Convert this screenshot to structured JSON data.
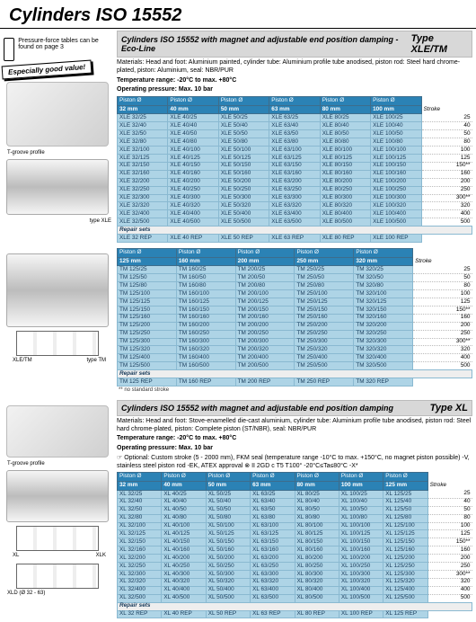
{
  "page_title": "Cylinders ISO 15552",
  "pressure_note": "Pressure-force tables can be found on page 3",
  "callout": "Especially good value!",
  "caption_tgroove": "T-groove profile",
  "caption_typeXLE": "type XLE",
  "caption_XLETM": "XLE/TM",
  "caption_typeTM": "type TM",
  "caption_XL": "XL",
  "caption_XLK": "XLK",
  "caption_XLD": "XLD (Ø 32 - 63)",
  "stroke_label": "Stroke",
  "repair_label": "Repair sets",
  "footnote_nostd": "** no standard stroke",
  "sec1": {
    "title": "Cylinders ISO 15552 with magnet and adjustable end position damping - Eco-Line",
    "type": "Type XLE/TM",
    "mat": "Materials: Head and foot: Aluminium painted, cylinder tube: Aluminium profile tube anodised, piston rod: Steel hard chrome-plated, piston: Aluminium, seal: NBR/PUR",
    "temp": "Temperature range: -20°C to max. +80°C",
    "press": "Operating pressure: Max. 10 bar"
  },
  "t1": {
    "dias": [
      "32 mm",
      "40 mm",
      "50 mm",
      "63 mm",
      "80 mm",
      "100 mm"
    ],
    "strokes": [
      25,
      40,
      50,
      80,
      100,
      125,
      "150**",
      160,
      200,
      250,
      "300**",
      320,
      400,
      500
    ],
    "pre": "XLE",
    "sizes": [
      "32",
      "40",
      "50",
      "63",
      "80",
      "100"
    ],
    "stvals": [
      "25",
      "40",
      "50",
      "80",
      "100",
      "125",
      "150",
      "160",
      "200",
      "250",
      "300",
      "320",
      "400",
      "500"
    ],
    "rep": [
      "XLE 32 REP",
      "XLE 40 REP",
      "XLE 50 REP",
      "XLE 63 REP",
      "XLE 80 REP",
      "XLE 100 REP"
    ]
  },
  "t2": {
    "dias": [
      "125 mm",
      "160 mm",
      "200 mm",
      "250 mm",
      "320 mm"
    ],
    "strokes": [
      25,
      50,
      80,
      100,
      125,
      "150**",
      160,
      200,
      250,
      "300**",
      320,
      400,
      500
    ],
    "pre": "TM",
    "sizes": [
      "125",
      "160",
      "200",
      "250",
      "320"
    ],
    "stvals": [
      "25",
      "50",
      "80",
      "100",
      "125",
      "150",
      "160",
      "200",
      "250",
      "300",
      "320",
      "400",
      "500"
    ],
    "rep": [
      "TM 125 REP",
      "TM 160 REP",
      "TM 200 REP",
      "TM 250 REP",
      "TM 320 REP"
    ]
  },
  "sec2": {
    "title": "Cylinders ISO 15552 with magnet and adjustable end position damping",
    "type": "Type XL",
    "mat": "Materials: Head and foot: Stove-enamelled die-cast aluminium, cylinder tube: Aluminium profile tube anodised, piston rod: Steel hard chrome-plated, piston: Complete piston (ST/NBR), seal: NBR/PUR",
    "temp": "Temperature range: -20°C to max. +80°C",
    "press": "Operating pressure: Max. 10 bar",
    "opt": "☞ Optional: Custom stroke (5 - 2000 mm), FKM seal (temperature range -10°C to max. +150°C, no magnet piston possible) -V, stainless steel piston rod -EK, ATEX approval ⊗ II 2GD c T5 T100° -20°C≤Ta≤80°C -X*"
  },
  "t3": {
    "dias": [
      "32 mm",
      "40 mm",
      "50 mm",
      "63 mm",
      "80 mm",
      "100 mm",
      "125 mm"
    ],
    "strokes": [
      25,
      40,
      50,
      80,
      100,
      125,
      "150**",
      160,
      200,
      250,
      "300**",
      320,
      400,
      500
    ],
    "pre": "XL",
    "sizes": [
      "32",
      "40",
      "50",
      "63",
      "80",
      "100",
      "125"
    ],
    "stvals": [
      "25",
      "40",
      "50",
      "80",
      "100",
      "125",
      "150",
      "160",
      "200",
      "250",
      "300",
      "320",
      "400",
      "500"
    ],
    "rep": [
      "XL 32 REP",
      "XL 40 REP",
      "XL 50 REP",
      "XL 63 REP",
      "XL 80 REP",
      "XL 100 REP",
      "XL 125 REP"
    ]
  },
  "hdr_piston": "Piston Ø"
}
